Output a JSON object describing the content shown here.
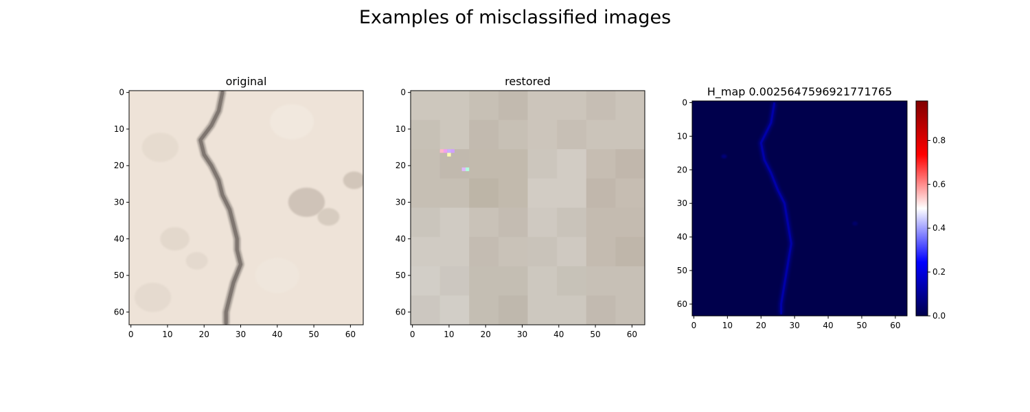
{
  "figure": {
    "title": "Examples of misclassified images"
  },
  "chart_data": [
    {
      "type": "image",
      "title": "original",
      "xlim": [
        -0.5,
        63.5
      ],
      "ylim": [
        63.5,
        -0.5
      ],
      "xticks": [
        0,
        10,
        20,
        30,
        40,
        50,
        60
      ],
      "yticks": [
        0,
        10,
        20,
        30,
        40,
        50,
        60
      ],
      "content": "64x64 pixel photo of a light beige concrete surface with a dark vertical crack",
      "crack_path": [
        [
          25,
          0
        ],
        [
          24,
          5
        ],
        [
          22,
          9
        ],
        [
          19,
          13
        ],
        [
          20,
          17
        ],
        [
          22,
          20
        ],
        [
          24,
          24
        ],
        [
          25,
          28
        ],
        [
          27,
          32
        ],
        [
          28,
          36
        ],
        [
          29,
          40
        ],
        [
          29,
          43
        ],
        [
          30,
          47
        ],
        [
          28,
          52
        ],
        [
          27,
          56
        ],
        [
          26,
          60
        ],
        [
          26,
          63
        ]
      ],
      "background_color": "#eee3d8",
      "crack_color": "#7f7670"
    },
    {
      "type": "image",
      "title": "restored",
      "xlim": [
        -0.5,
        63.5
      ],
      "ylim": [
        63.5,
        -0.5
      ],
      "xticks": [
        0,
        10,
        20,
        30,
        40,
        50,
        60
      ],
      "yticks": [
        0,
        10,
        20,
        30,
        40,
        50,
        60
      ],
      "content": "64x64 blocky restoration: 4x4 grid of 16-pixel patches in grey-beige tones with a few colored noise pixels near (9-15, 16-22)",
      "block_size": 16,
      "block_tones": [
        [
          "#cdc7bd",
          "#c7c0b5",
          "#ccc5bb",
          "#cbc4ba"
        ],
        [
          "#c6bfb4",
          "#c2baad",
          "#d2ccc4",
          "#c6bdb2"
        ],
        [
          "#d0cbc3",
          "#c9c2b8",
          "#cfc9c1",
          "#c4bbb0"
        ],
        [
          "#d2cec7",
          "#c4beb3",
          "#cdc8bf",
          "#c7c0b6"
        ]
      ],
      "noise_pixels": [
        {
          "x": 8,
          "y": 16,
          "color": "#ffb8c8"
        },
        {
          "x": 9,
          "y": 16,
          "color": "#f2a0f0"
        },
        {
          "x": 10,
          "y": 17,
          "color": "#ffffb0"
        },
        {
          "x": 11,
          "y": 16,
          "color": "#d0a0ff"
        },
        {
          "x": 10,
          "y": 16,
          "color": "#c8b0ff"
        },
        {
          "x": 15,
          "y": 21,
          "color": "#b0ffe0"
        },
        {
          "x": 14,
          "y": 21,
          "color": "#e0b8ff"
        }
      ]
    },
    {
      "type": "heatmap",
      "title": "H_map  0.0025647596921771765",
      "xlim": [
        -0.5,
        63.5
      ],
      "ylim": [
        63.5,
        -0.5
      ],
      "xticks": [
        0,
        10,
        20,
        30,
        40,
        50,
        60
      ],
      "yticks": [
        0,
        10,
        20,
        30,
        40,
        50,
        60
      ],
      "colormap": "seismic",
      "vmin": 0.0,
      "vmax": 0.98,
      "background_value": 0.0,
      "highlight_path": [
        [
          24,
          0
        ],
        [
          23,
          6
        ],
        [
          20,
          12
        ],
        [
          21,
          17
        ],
        [
          23,
          21
        ],
        [
          25,
          26
        ],
        [
          27,
          30
        ],
        [
          28,
          36
        ],
        [
          29,
          42
        ],
        [
          28,
          48
        ],
        [
          27,
          54
        ],
        [
          26,
          60
        ],
        [
          26,
          63
        ]
      ],
      "highlight_value": 0.12,
      "colorbar": {
        "ticks": [
          0.0,
          0.2,
          0.4,
          0.6,
          0.8
        ],
        "tick_labels": [
          "0.0",
          "0.2",
          "0.4",
          "0.6",
          "0.8"
        ]
      }
    }
  ]
}
